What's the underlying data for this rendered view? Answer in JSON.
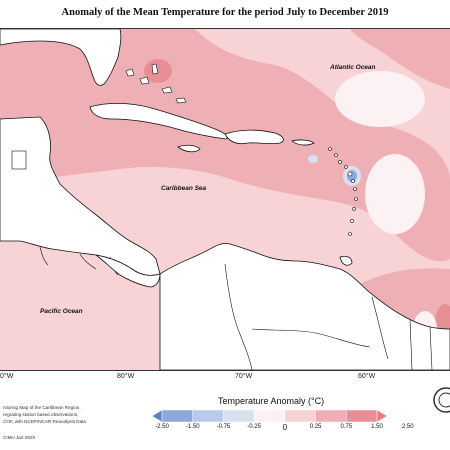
{
  "title": "Anomaly of the Mean Temperature for the period July to December 2019",
  "oceans": {
    "atlantic": "Atlantic Ocean",
    "caribbean": "Caribbean Sea",
    "pacific": "Pacific Ocean"
  },
  "longitude_labels": [
    "0°W",
    "80°W",
    "70°W",
    "60°W"
  ],
  "footer": {
    "line1": "nitoring Map of the Caribbean Region.",
    "line2": "regrating station based observations,",
    "line3": "COF, with NCEP/NCAR Reanalysis Data",
    "credit": "CIMH Jan-2020"
  },
  "legend": {
    "title": "Temperature Anomaly (°C)",
    "ticks": [
      "-2.50",
      "-1.50",
      "-0.75",
      "-0.25",
      "0",
      "0.25",
      "0.75",
      "1.50",
      "2.50"
    ],
    "colors": [
      "#5f7fbf",
      "#8ea8dc",
      "#b9c9ec",
      "#d6e3ee",
      "#fdf2f3",
      "#f8d3d6",
      "#eeb0b5",
      "#e88f96",
      "#f07a80"
    ]
  },
  "colors": {
    "anomaly_0_25": "#f8d3d6",
    "anomaly_0_75": "#eeb0b5",
    "anomaly_1_50": "#e88f96",
    "anomaly_neg": "#8ea8dc",
    "land": "#ffffff",
    "coastline": "#111111"
  }
}
